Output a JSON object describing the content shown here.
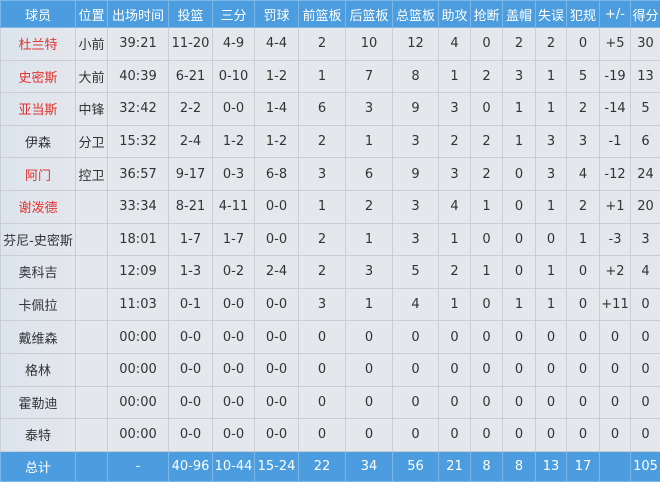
{
  "headers": [
    "球员",
    "位置",
    "出场时间",
    "投篮",
    "三分",
    "罚球",
    "前篮板",
    "后篮板",
    "总篮板",
    "助攻",
    "抢断",
    "盖帽",
    "失误",
    "犯规",
    "+/-",
    "得分"
  ],
  "accent_color": "#4b9de0",
  "starter_name_color": "#e3322f",
  "rows": [
    {
      "name": "杜兰特",
      "starter": true,
      "cells": [
        "小前",
        "39:21",
        "11-20",
        "4-9",
        "4-4",
        "2",
        "10",
        "12",
        "4",
        "0",
        "2",
        "2",
        "0",
        "+5",
        "30"
      ]
    },
    {
      "name": "史密斯",
      "starter": true,
      "cells": [
        "大前",
        "40:39",
        "6-21",
        "0-10",
        "1-2",
        "1",
        "7",
        "8",
        "1",
        "2",
        "3",
        "1",
        "5",
        "-19",
        "13"
      ]
    },
    {
      "name": "亚当斯",
      "starter": true,
      "cells": [
        "中锋",
        "32:42",
        "2-2",
        "0-0",
        "1-4",
        "6",
        "3",
        "9",
        "3",
        "0",
        "1",
        "1",
        "2",
        "-14",
        "5"
      ]
    },
    {
      "name": "伊森",
      "starter": false,
      "cells": [
        "分卫",
        "15:32",
        "2-4",
        "1-2",
        "1-2",
        "2",
        "1",
        "3",
        "2",
        "2",
        "1",
        "3",
        "3",
        "-1",
        "6"
      ]
    },
    {
      "name": "阿门",
      "starter": true,
      "cells": [
        "控卫",
        "36:57",
        "9-17",
        "0-3",
        "6-8",
        "3",
        "6",
        "9",
        "3",
        "2",
        "0",
        "3",
        "4",
        "-12",
        "24"
      ]
    },
    {
      "name": "谢泼德",
      "starter": true,
      "cells": [
        "",
        "33:34",
        "8-21",
        "4-11",
        "0-0",
        "1",
        "2",
        "3",
        "4",
        "1",
        "0",
        "1",
        "2",
        "+1",
        "20"
      ]
    },
    {
      "name": "芬尼-史密斯",
      "starter": false,
      "cells": [
        "",
        "18:01",
        "1-7",
        "1-7",
        "0-0",
        "2",
        "1",
        "3",
        "1",
        "0",
        "0",
        "0",
        "1",
        "-3",
        "3"
      ]
    },
    {
      "name": "奥科吉",
      "starter": false,
      "cells": [
        "",
        "12:09",
        "1-3",
        "0-2",
        "2-4",
        "2",
        "3",
        "5",
        "2",
        "1",
        "0",
        "1",
        "0",
        "+2",
        "4"
      ]
    },
    {
      "name": "卡佩拉",
      "starter": false,
      "cells": [
        "",
        "11:03",
        "0-1",
        "0-0",
        "0-0",
        "3",
        "1",
        "4",
        "1",
        "0",
        "1",
        "1",
        "0",
        "+11",
        "0"
      ]
    },
    {
      "name": "戴维森",
      "starter": false,
      "cells": [
        "",
        "00:00",
        "0-0",
        "0-0",
        "0-0",
        "0",
        "0",
        "0",
        "0",
        "0",
        "0",
        "0",
        "0",
        "0",
        "0"
      ]
    },
    {
      "name": "格林",
      "starter": false,
      "cells": [
        "",
        "00:00",
        "0-0",
        "0-0",
        "0-0",
        "0",
        "0",
        "0",
        "0",
        "0",
        "0",
        "0",
        "0",
        "0",
        "0"
      ]
    },
    {
      "name": "霍勒迪",
      "starter": false,
      "cells": [
        "",
        "00:00",
        "0-0",
        "0-0",
        "0-0",
        "0",
        "0",
        "0",
        "0",
        "0",
        "0",
        "0",
        "0",
        "0",
        "0"
      ]
    },
    {
      "name": "泰特",
      "starter": false,
      "cells": [
        "",
        "00:00",
        "0-0",
        "0-0",
        "0-0",
        "0",
        "0",
        "0",
        "0",
        "0",
        "0",
        "0",
        "0",
        "0",
        "0"
      ]
    }
  ],
  "totals": {
    "label": "总计",
    "cells": [
      "",
      "-",
      "40-96",
      "10-44",
      "15-24",
      "22",
      "34",
      "56",
      "21",
      "8",
      "8",
      "13",
      "17",
      "",
      "105"
    ]
  }
}
